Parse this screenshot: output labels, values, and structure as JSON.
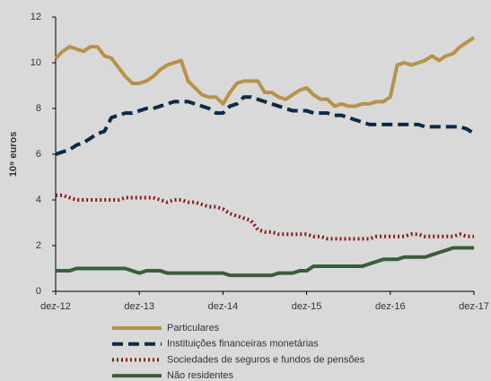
{
  "chart_data": {
    "type": "line",
    "y_label": "10⁹ euros",
    "categories": [
      "dez-12",
      null,
      null,
      null,
      null,
      null,
      null,
      null,
      null,
      null,
      null,
      null,
      "dez-13",
      null,
      null,
      null,
      null,
      null,
      null,
      null,
      null,
      null,
      null,
      null,
      "dez-14",
      null,
      null,
      null,
      null,
      null,
      null,
      null,
      null,
      null,
      null,
      null,
      "dez-15",
      null,
      null,
      null,
      null,
      null,
      null,
      null,
      null,
      null,
      null,
      null,
      "dez-16",
      null,
      null,
      null,
      null,
      null,
      null,
      null,
      null,
      null,
      null,
      null,
      "dez-17"
    ],
    "ylim": [
      0,
      12
    ],
    "yticks": [
      0,
      2,
      4,
      6,
      8,
      10,
      12
    ],
    "series": [
      {
        "name": "Particulares",
        "color": "#b8924a",
        "dash": "solid",
        "values": [
          10.2,
          10.5,
          10.7,
          10.6,
          10.5,
          10.7,
          10.7,
          10.3,
          10.2,
          9.8,
          9.4,
          9.1,
          9.1,
          9.2,
          9.4,
          9.7,
          9.9,
          10.0,
          10.1,
          9.2,
          8.9,
          8.6,
          8.5,
          8.5,
          8.2,
          8.7,
          9.1,
          9.2,
          9.2,
          9.2,
          8.7,
          8.7,
          8.5,
          8.4,
          8.6,
          8.8,
          8.9,
          8.6,
          8.4,
          8.4,
          8.1,
          8.2,
          8.1,
          8.1,
          8.2,
          8.2,
          8.3,
          8.3,
          8.5,
          9.9,
          10.0,
          9.9,
          10.0,
          10.1,
          10.3,
          10.1,
          10.3,
          10.4,
          10.7,
          10.9,
          11.1
        ]
      },
      {
        "name": "Instituições financeiras monetárias",
        "color": "#0e2a47",
        "dash": "dashed",
        "values": [
          6.0,
          6.1,
          6.2,
          6.4,
          6.5,
          6.7,
          6.9,
          7.0,
          7.6,
          7.7,
          7.8,
          7.8,
          7.9,
          8.0,
          8.0,
          8.1,
          8.2,
          8.3,
          8.3,
          8.3,
          8.2,
          8.1,
          8.0,
          7.8,
          7.8,
          8.1,
          8.2,
          8.5,
          8.5,
          8.4,
          8.3,
          8.2,
          8.1,
          8.0,
          7.9,
          7.9,
          7.9,
          7.8,
          7.8,
          7.8,
          7.7,
          7.7,
          7.6,
          7.5,
          7.4,
          7.3,
          7.3,
          7.3,
          7.3,
          7.3,
          7.3,
          7.3,
          7.3,
          7.2,
          7.2,
          7.2,
          7.2,
          7.2,
          7.2,
          7.1,
          6.9
        ]
      },
      {
        "name": "Sociedades de seguros e fundos de pensões",
        "color": "#8b1a1a",
        "dash": "dotted",
        "values": [
          4.2,
          4.2,
          4.1,
          4.0,
          4.0,
          4.0,
          4.0,
          4.0,
          4.0,
          4.0,
          4.1,
          4.1,
          4.1,
          4.1,
          4.1,
          4.0,
          3.9,
          4.0,
          4.0,
          3.9,
          3.9,
          3.8,
          3.7,
          3.7,
          3.6,
          3.4,
          3.3,
          3.2,
          3.1,
          2.7,
          2.6,
          2.6,
          2.5,
          2.5,
          2.5,
          2.5,
          2.5,
          2.4,
          2.4,
          2.3,
          2.3,
          2.3,
          2.3,
          2.3,
          2.3,
          2.3,
          2.4,
          2.4,
          2.4,
          2.4,
          2.4,
          2.5,
          2.5,
          2.4,
          2.4,
          2.4,
          2.4,
          2.4,
          2.5,
          2.4,
          2.4
        ]
      },
      {
        "name": "Não residentes",
        "color": "#3a5e3a",
        "dash": "solid",
        "values": [
          0.9,
          0.9,
          0.9,
          1.0,
          1.0,
          1.0,
          1.0,
          1.0,
          1.0,
          1.0,
          1.0,
          0.9,
          0.8,
          0.9,
          0.9,
          0.9,
          0.8,
          0.8,
          0.8,
          0.8,
          0.8,
          0.8,
          0.8,
          0.8,
          0.8,
          0.7,
          0.7,
          0.7,
          0.7,
          0.7,
          0.7,
          0.7,
          0.8,
          0.8,
          0.8,
          0.9,
          0.9,
          1.1,
          1.1,
          1.1,
          1.1,
          1.1,
          1.1,
          1.1,
          1.1,
          1.2,
          1.3,
          1.4,
          1.4,
          1.4,
          1.5,
          1.5,
          1.5,
          1.5,
          1.6,
          1.7,
          1.8,
          1.9,
          1.9,
          1.9,
          1.9
        ]
      }
    ]
  }
}
